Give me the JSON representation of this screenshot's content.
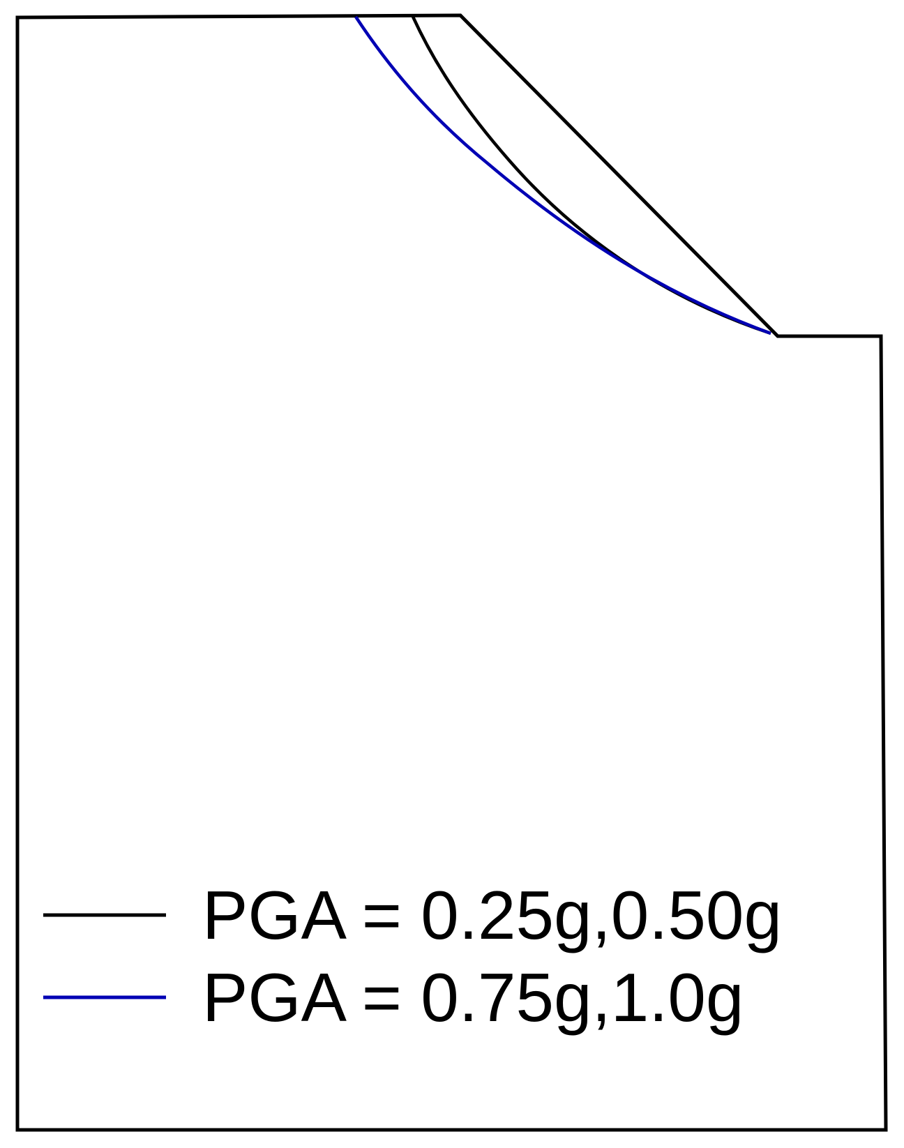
{
  "colors": {
    "outline": "#000000",
    "series_a": "#000000",
    "series_b": "#0000b4",
    "background": "#ffffff"
  },
  "legend": {
    "placement": "bottom-left",
    "items": [
      {
        "label": "PGA = 0.25g,0.50g",
        "color": "#000000"
      },
      {
        "label": "PGA = 0.75g,1.0g",
        "color": "#0000b4"
      }
    ]
  }
}
